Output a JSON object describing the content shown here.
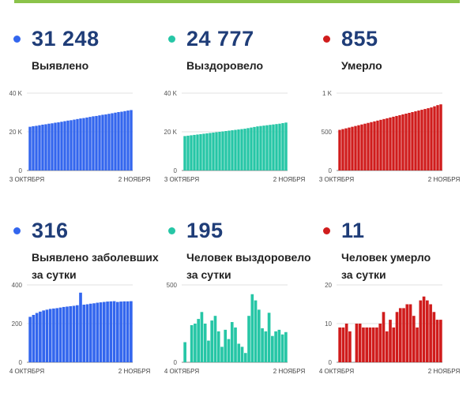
{
  "colors": {
    "top_bar": "#8bc34a",
    "blue": "#3366ee",
    "teal": "#26c6a6",
    "red": "#d01c1c",
    "value_text": "#1f3d78"
  },
  "panels": [
    {
      "value": "31 248",
      "label_lines": [
        "Выявлено"
      ],
      "color_key": "blue",
      "chart_data": {
        "type": "bar",
        "ylim": [
          0,
          40000
        ],
        "y_ticks": [
          {
            "value": 0,
            "label": "0"
          },
          {
            "value": 20000,
            "label": "20 K"
          },
          {
            "value": 40000,
            "label": "40 K"
          }
        ],
        "x_labels": [
          "3 ОКТЯБРЯ",
          "2 НОЯБРЯ"
        ],
        "values": [
          22600,
          22900,
          23100,
          23400,
          23700,
          23900,
          24200,
          24400,
          24700,
          24900,
          25200,
          25500,
          25800,
          26000,
          26300,
          26600,
          26900,
          27100,
          27400,
          27700,
          28000,
          28200,
          28500,
          28800,
          29000,
          29300,
          29600,
          29900,
          30200,
          30400,
          30700,
          31000,
          31248
        ]
      }
    },
    {
      "value": "24 777",
      "label_lines": [
        "Выздоровело"
      ],
      "color_key": "teal",
      "chart_data": {
        "type": "bar",
        "ylim": [
          0,
          40000
        ],
        "y_ticks": [
          {
            "value": 0,
            "label": "0"
          },
          {
            "value": 20000,
            "label": "20 K"
          },
          {
            "value": 40000,
            "label": "40 K"
          }
        ],
        "x_labels": [
          "3 ОКТЯБРЯ",
          "2 НОЯБРЯ"
        ],
        "values": [
          17800,
          18000,
          18200,
          18400,
          18600,
          18800,
          19000,
          19200,
          19400,
          19600,
          19800,
          20000,
          20200,
          20400,
          20600,
          20800,
          21000,
          21200,
          21400,
          21600,
          21900,
          22200,
          22500,
          22800,
          23000,
          23200,
          23400,
          23600,
          23800,
          24000,
          24200,
          24500,
          24777
        ]
      }
    },
    {
      "value": "855",
      "label_lines": [
        "Умерло"
      ],
      "color_key": "red",
      "chart_data": {
        "type": "bar",
        "ylim": [
          0,
          1000
        ],
        "y_ticks": [
          {
            "value": 0,
            "label": "0"
          },
          {
            "value": 500,
            "label": "500"
          },
          {
            "value": 1000,
            "label": "1 K"
          }
        ],
        "x_labels": [
          "3 ОКТЯБРЯ",
          "2 НОЯБРЯ"
        ],
        "values": [
          525,
          535,
          545,
          555,
          565,
          575,
          585,
          595,
          605,
          615,
          625,
          635,
          645,
          655,
          665,
          675,
          685,
          695,
          705,
          715,
          725,
          735,
          745,
          755,
          765,
          775,
          785,
          795,
          805,
          815,
          830,
          845,
          855
        ]
      }
    },
    {
      "value": "316",
      "label_lines": [
        "Выявлено заболевших",
        "за сутки"
      ],
      "color_key": "blue",
      "chart_data": {
        "type": "bar",
        "ylim": [
          0,
          400
        ],
        "y_ticks": [
          {
            "value": 0,
            "label": "0"
          },
          {
            "value": 200,
            "label": "200"
          },
          {
            "value": 400,
            "label": "400"
          }
        ],
        "x_labels": [
          "4 ОКТЯБРЯ",
          "2 НОЯБРЯ"
        ],
        "values": [
          235,
          245,
          255,
          262,
          268,
          272,
          276,
          278,
          280,
          283,
          286,
          288,
          290,
          292,
          295,
          360,
          298,
          300,
          303,
          305,
          308,
          310,
          312,
          314,
          315,
          316,
          312,
          314,
          315,
          315,
          316
        ]
      }
    },
    {
      "value": "195",
      "label_lines": [
        "Человек выздоровело",
        "за сутки"
      ],
      "color_key": "teal",
      "chart_data": {
        "type": "bar",
        "ylim": [
          0,
          500
        ],
        "y_ticks": [
          {
            "value": 0,
            "label": "0"
          },
          {
            "value": 500,
            "label": "500"
          }
        ],
        "x_labels": [
          "4 ОКТЯБРЯ",
          "2 НОЯБРЯ"
        ],
        "values": [
          130,
          0,
          240,
          250,
          280,
          325,
          250,
          140,
          270,
          300,
          200,
          100,
          210,
          150,
          260,
          225,
          120,
          100,
          60,
          300,
          440,
          400,
          340,
          220,
          200,
          320,
          170,
          200,
          210,
          180,
          195
        ]
      }
    },
    {
      "value": "11",
      "label_lines": [
        "Человек умерло",
        "за сутки"
      ],
      "color_key": "red",
      "chart_data": {
        "type": "bar",
        "ylim": [
          0,
          20
        ],
        "y_ticks": [
          {
            "value": 0,
            "label": "0"
          },
          {
            "value": 10,
            "label": "10"
          },
          {
            "value": 20,
            "label": "20"
          }
        ],
        "x_labels": [
          "4 ОКТЯБРЯ",
          "2 НОЯБРЯ"
        ],
        "values": [
          9,
          9,
          10,
          8,
          0,
          10,
          10,
          9,
          9,
          9,
          9,
          9,
          10,
          13,
          8,
          11,
          9,
          13,
          14,
          14,
          15,
          15,
          12,
          9,
          16,
          17,
          16,
          15,
          13,
          11,
          11
        ]
      }
    }
  ]
}
